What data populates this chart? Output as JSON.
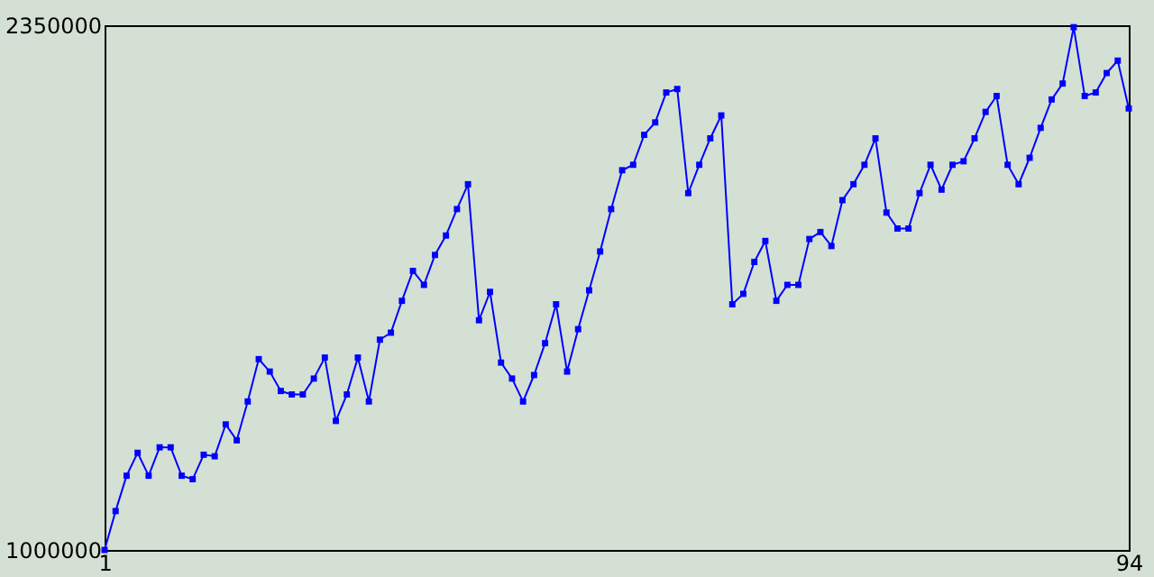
{
  "chart_data": {
    "type": "line",
    "x": [
      1,
      2,
      3,
      4,
      5,
      6,
      7,
      8,
      9,
      10,
      11,
      12,
      13,
      14,
      15,
      16,
      17,
      18,
      19,
      20,
      21,
      22,
      23,
      24,
      25,
      26,
      27,
      28,
      29,
      30,
      31,
      32,
      33,
      34,
      35,
      36,
      37,
      38,
      39,
      40,
      41,
      42,
      43,
      44,
      45,
      46,
      47,
      48,
      49,
      50,
      51,
      52,
      53,
      54,
      55,
      56,
      57,
      58,
      59,
      60,
      61,
      62,
      63,
      64,
      65,
      66,
      67,
      68,
      69,
      70,
      71,
      72,
      73,
      74,
      75,
      76,
      77,
      78,
      79,
      80,
      81,
      82,
      83,
      84,
      85,
      86,
      87,
      88,
      89,
      90,
      91,
      92,
      93,
      94
    ],
    "series": [
      {
        "color": "#0000ff",
        "values": [
          1000000,
          1100000,
          1191000,
          1250000,
          1191000,
          1264000,
          1264000,
          1191000,
          1182000,
          1245000,
          1241000,
          1323000,
          1282000,
          1382000,
          1491000,
          1459000,
          1409000,
          1400000,
          1400000,
          1441000,
          1495000,
          1332000,
          1400000,
          1495000,
          1382000,
          1541000,
          1559000,
          1641000,
          1718000,
          1682000,
          1759000,
          1809000,
          1877000,
          1941000,
          1591000,
          1664000,
          1482000,
          1441000,
          1382000,
          1450000,
          1532000,
          1632000,
          1459000,
          1568000,
          1668000,
          1768000,
          1877000,
          1977000,
          1991000,
          2068000,
          2100000,
          2177000,
          2186000,
          1918000,
          1991000,
          2059000,
          2118000,
          1632000,
          1659000,
          1741000,
          1795000,
          1641000,
          1682000,
          1682000,
          1800000,
          1818000,
          1782000,
          1900000,
          1941000,
          1991000,
          2059000,
          1868000,
          1827000,
          1827000,
          1918000,
          1991000,
          1927000,
          1991000,
          2000000,
          2059000,
          2127000,
          2168000,
          1991000,
          1941000,
          2009000,
          2086000,
          2159000,
          2200000,
          2345000,
          2168000,
          2177000,
          2227000,
          2259000,
          2136000
        ]
      }
    ],
    "xlim": [
      1,
      94
    ],
    "xticks": [
      1,
      94
    ],
    "ylim": [
      1000000,
      2350000
    ],
    "yticks": [
      1000000,
      2350000
    ],
    "marker": "square",
    "line_style": "solid",
    "grid": false,
    "legend": false
  }
}
